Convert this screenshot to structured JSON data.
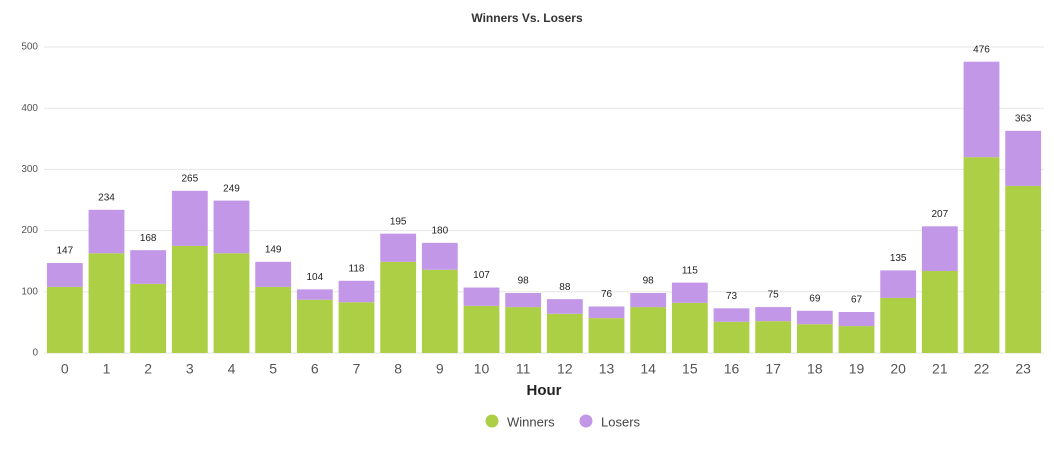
{
  "chart_data": {
    "type": "stacked-bar",
    "title": "Winners Vs. Losers",
    "x_label": "Hour",
    "categories": [
      "0",
      "1",
      "2",
      "3",
      "4",
      "5",
      "6",
      "7",
      "8",
      "9",
      "10",
      "11",
      "12",
      "13",
      "14",
      "15",
      "16",
      "17",
      "18",
      "19",
      "20",
      "21",
      "22",
      "23"
    ],
    "series": [
      {
        "name": "Winners",
        "color": "#adcf45",
        "values": [
          108,
          163,
          113,
          175,
          163,
          108,
          87,
          83,
          149,
          136,
          77,
          75,
          64,
          57,
          75,
          82,
          51,
          52,
          47,
          44,
          90,
          134,
          320,
          273
        ]
      },
      {
        "name": "Losers",
        "color": "#c297e8",
        "values": [
          39,
          71,
          55,
          90,
          86,
          41,
          17,
          35,
          46,
          44,
          30,
          23,
          24,
          19,
          23,
          33,
          22,
          23,
          22,
          23,
          45,
          73,
          156,
          90
        ]
      }
    ],
    "totals": [
      147,
      234,
      168,
      265,
      249,
      149,
      104,
      118,
      195,
      180,
      107,
      98,
      88,
      76,
      98,
      115,
      73,
      75,
      69,
      67,
      135,
      207,
      476,
      363
    ],
    "ylim": [
      0,
      500
    ],
    "yticks": [
      0,
      100,
      200,
      300,
      400,
      500
    ],
    "grid": true,
    "legend": "bottom"
  }
}
